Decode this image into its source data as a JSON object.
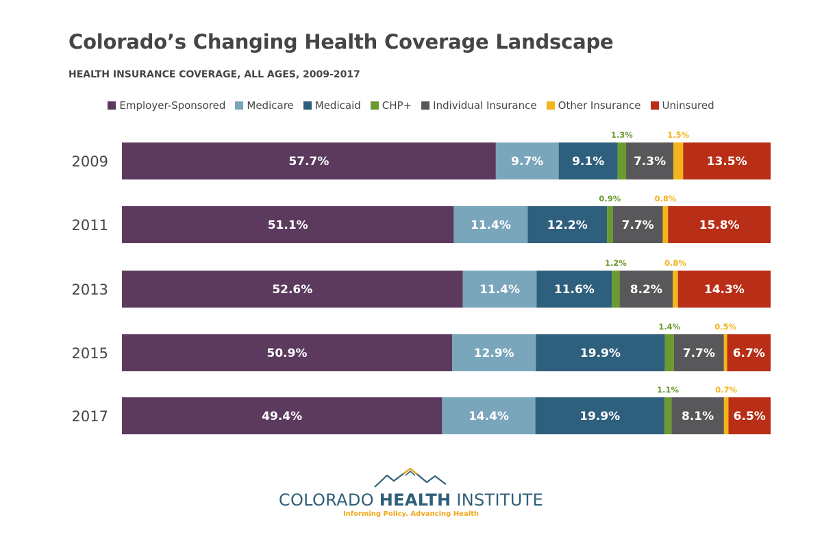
{
  "colors": {
    "employer": "#5b3a5e",
    "medicare": "#7aa6bb",
    "medicaid": "#2e5f7c",
    "chp": "#6b9a2e",
    "individual": "#58585a",
    "other": "#f4b41a",
    "uninsured": "#b82e16"
  },
  "chart_data": {
    "type": "bar",
    "orientation": "horizontal",
    "stacked": true,
    "title": "Colorado’s Changing Health Coverage Landscape",
    "subtitle": "HEALTH INSURANCE COVERAGE, ALL AGES, 2009-2017",
    "categories": [
      "2009",
      "2011",
      "2013",
      "2015",
      "2017"
    ],
    "legend_position": "top",
    "grid": false,
    "series": [
      {
        "name": "Employer-Sponsored",
        "key": "employer",
        "values": [
          57.7,
          51.1,
          52.6,
          50.9,
          49.4
        ],
        "labels": [
          "57.7%",
          "51.1%",
          "52.6%",
          "50.9%",
          "49.4%"
        ]
      },
      {
        "name": "Medicare",
        "key": "medicare",
        "values": [
          9.7,
          11.4,
          11.4,
          12.9,
          14.4
        ],
        "labels": [
          "9.7%",
          "11.4%",
          "11.4%",
          "12.9%",
          "14.4%"
        ]
      },
      {
        "name": "Medicaid",
        "key": "medicaid",
        "values": [
          9.1,
          12.2,
          11.6,
          19.9,
          19.9
        ],
        "labels": [
          "9.1%",
          "12.2%",
          "11.6%",
          "19.9%",
          "19.9%"
        ]
      },
      {
        "name": "CHP+",
        "key": "chp",
        "values": [
          1.3,
          0.9,
          1.2,
          1.4,
          1.1
        ],
        "labels": [
          "1.3%",
          "0.9%",
          "1.2%",
          "1.4%",
          "1.1%"
        ]
      },
      {
        "name": "Individual Insurance",
        "key": "individual",
        "values": [
          7.3,
          7.7,
          8.2,
          7.7,
          8.1
        ],
        "labels": [
          "7.3%",
          "7.7%",
          "8.2%",
          "7.7%",
          "8.1%"
        ]
      },
      {
        "name": "Other Insurance",
        "key": "other",
        "values": [
          1.5,
          0.8,
          0.8,
          0.5,
          0.7
        ],
        "labels": [
          "1.5%",
          "0.8%",
          "0.8%",
          "0.5%",
          "0.7%"
        ]
      },
      {
        "name": "Uninsured",
        "key": "uninsured",
        "values": [
          13.5,
          15.8,
          14.3,
          6.7,
          6.5
        ],
        "labels": [
          "13.5%",
          "15.8%",
          "14.3%",
          "6.7%",
          "6.5%"
        ]
      }
    ]
  },
  "logo": {
    "name_light": "COLORADO ",
    "name_bold": "HEALTH",
    "name_light2": " INSTITUTE",
    "tagline": "Informing Policy. Advancing Health"
  }
}
